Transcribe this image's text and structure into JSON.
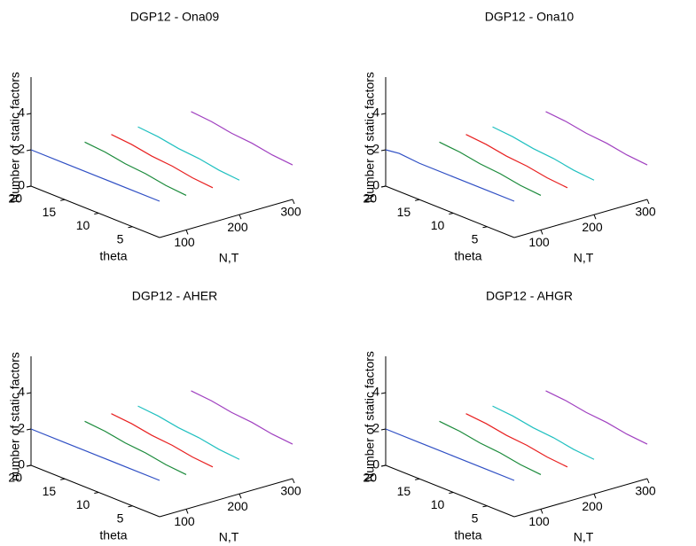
{
  "chart_data": [
    {
      "type": "line3d",
      "title": "DGP12 - Ona09",
      "xlabel": "N,T",
      "ylabel": "theta",
      "zlabel": "Number of static factors",
      "xlim": [
        50,
        300
      ],
      "xticks": [
        100,
        200,
        300
      ],
      "ylim": [
        1,
        20
      ],
      "yticks": [
        5,
        10,
        15,
        20
      ],
      "zlim": [
        0,
        6
      ],
      "zticks": [
        0,
        2,
        4
      ],
      "series": [
        {
          "color": "#2f4fc4",
          "nt": 50,
          "theta": [
            1,
            5,
            10,
            15,
            20
          ],
          "values": [
            2,
            2,
            2,
            2,
            2
          ]
        },
        {
          "color": "#1a8a3a",
          "nt": 100,
          "theta": [
            1,
            4,
            7,
            10,
            13,
            16
          ],
          "values": [
            1.9,
            2,
            2.2,
            2.3,
            2.5,
            2.6
          ]
        },
        {
          "color": "#e82020",
          "nt": 150,
          "theta": [
            1,
            4,
            7,
            10,
            13,
            16
          ],
          "values": [
            1.9,
            2,
            2.2,
            2.3,
            2.5,
            2.6
          ]
        },
        {
          "color": "#20c0c0",
          "nt": 200,
          "theta": [
            1,
            4,
            7,
            10,
            13,
            16
          ],
          "values": [
            1.9,
            2,
            2.2,
            2.3,
            2.5,
            2.6
          ]
        },
        {
          "color": "#a040c0",
          "nt": 300,
          "theta": [
            1,
            4,
            7,
            10,
            13,
            16
          ],
          "values": [
            1.9,
            2,
            2.2,
            2.3,
            2.5,
            2.6
          ]
        }
      ]
    },
    {
      "type": "line3d",
      "title": "DGP12 - Ona10",
      "xlabel": "N,T",
      "ylabel": "theta",
      "zlabel": "Number of static factors",
      "xlim": [
        50,
        300
      ],
      "xticks": [
        100,
        200,
        300
      ],
      "ylim": [
        1,
        20
      ],
      "yticks": [
        5,
        10,
        15,
        20
      ],
      "zlim": [
        0,
        6
      ],
      "zticks": [
        0,
        2,
        4
      ],
      "series": [
        {
          "color": "#2f4fc4",
          "nt": 50,
          "theta": [
            1,
            5,
            10,
            15,
            18,
            20
          ],
          "values": [
            2,
            2,
            2,
            2,
            2.1,
            2
          ]
        },
        {
          "color": "#1a8a3a",
          "nt": 100,
          "theta": [
            1,
            4,
            7,
            10,
            13,
            16
          ],
          "values": [
            1.9,
            2,
            2.2,
            2.3,
            2.5,
            2.6
          ]
        },
        {
          "color": "#e82020",
          "nt": 150,
          "theta": [
            1,
            4,
            7,
            10,
            13,
            16
          ],
          "values": [
            1.9,
            2,
            2.2,
            2.3,
            2.5,
            2.6
          ]
        },
        {
          "color": "#20c0c0",
          "nt": 200,
          "theta": [
            1,
            4,
            7,
            10,
            13,
            16
          ],
          "values": [
            1.9,
            2,
            2.2,
            2.3,
            2.5,
            2.6
          ]
        },
        {
          "color": "#a040c0",
          "nt": 300,
          "theta": [
            1,
            4,
            7,
            10,
            13,
            16
          ],
          "values": [
            1.9,
            2,
            2.2,
            2.3,
            2.5,
            2.6
          ]
        }
      ]
    },
    {
      "type": "line3d",
      "title": "DGP12 - AHER",
      "xlabel": "N,T",
      "ylabel": "theta",
      "zlabel": "number of static factors",
      "xlim": [
        50,
        300
      ],
      "xticks": [
        100,
        200,
        300
      ],
      "ylim": [
        1,
        20
      ],
      "yticks": [
        5,
        10,
        15,
        20
      ],
      "zlim": [
        0,
        6
      ],
      "zticks": [
        0,
        2,
        4
      ],
      "series": [
        {
          "color": "#2f4fc4",
          "nt": 50,
          "theta": [
            1,
            5,
            10,
            15,
            20
          ],
          "values": [
            2,
            2,
            2,
            2,
            2
          ]
        },
        {
          "color": "#1a8a3a",
          "nt": 100,
          "theta": [
            1,
            4,
            7,
            10,
            13,
            16
          ],
          "values": [
            1.9,
            2,
            2.2,
            2.3,
            2.5,
            2.6
          ]
        },
        {
          "color": "#e82020",
          "nt": 150,
          "theta": [
            1,
            4,
            7,
            10,
            13,
            16
          ],
          "values": [
            1.9,
            2,
            2.2,
            2.3,
            2.5,
            2.6
          ]
        },
        {
          "color": "#20c0c0",
          "nt": 200,
          "theta": [
            1,
            4,
            7,
            10,
            13,
            16
          ],
          "values": [
            1.9,
            2,
            2.2,
            2.3,
            2.5,
            2.6
          ]
        },
        {
          "color": "#a040c0",
          "nt": 300,
          "theta": [
            1,
            4,
            7,
            10,
            13,
            16
          ],
          "values": [
            1.9,
            2,
            2.2,
            2.3,
            2.5,
            2.6
          ]
        }
      ]
    },
    {
      "type": "line3d",
      "title": "DGP12 - AHGR",
      "xlabel": "N,T",
      "ylabel": "theta",
      "zlabel": "Number of static factors",
      "xlim": [
        50,
        300
      ],
      "xticks": [
        100,
        200,
        300
      ],
      "ylim": [
        1,
        20
      ],
      "yticks": [
        5,
        10,
        15,
        20
      ],
      "zlim": [
        0,
        6
      ],
      "zticks": [
        0,
        2,
        4
      ],
      "series": [
        {
          "color": "#2f4fc4",
          "nt": 50,
          "theta": [
            1,
            5,
            10,
            15,
            20
          ],
          "values": [
            2,
            2,
            2,
            2,
            2
          ]
        },
        {
          "color": "#1a8a3a",
          "nt": 100,
          "theta": [
            1,
            4,
            7,
            10,
            13,
            16
          ],
          "values": [
            1.9,
            2,
            2.2,
            2.3,
            2.5,
            2.6
          ]
        },
        {
          "color": "#e82020",
          "nt": 150,
          "theta": [
            1,
            4,
            7,
            10,
            13,
            16
          ],
          "values": [
            1.9,
            2,
            2.2,
            2.3,
            2.5,
            2.6
          ]
        },
        {
          "color": "#20c0c0",
          "nt": 200,
          "theta": [
            1,
            4,
            7,
            10,
            13,
            16
          ],
          "values": [
            1.9,
            2,
            2.2,
            2.3,
            2.5,
            2.6
          ]
        },
        {
          "color": "#a040c0",
          "nt": 300,
          "theta": [
            1,
            4,
            7,
            10,
            13,
            16
          ],
          "values": [
            1.9,
            2,
            2.2,
            2.3,
            2.5,
            2.6
          ]
        }
      ]
    }
  ]
}
